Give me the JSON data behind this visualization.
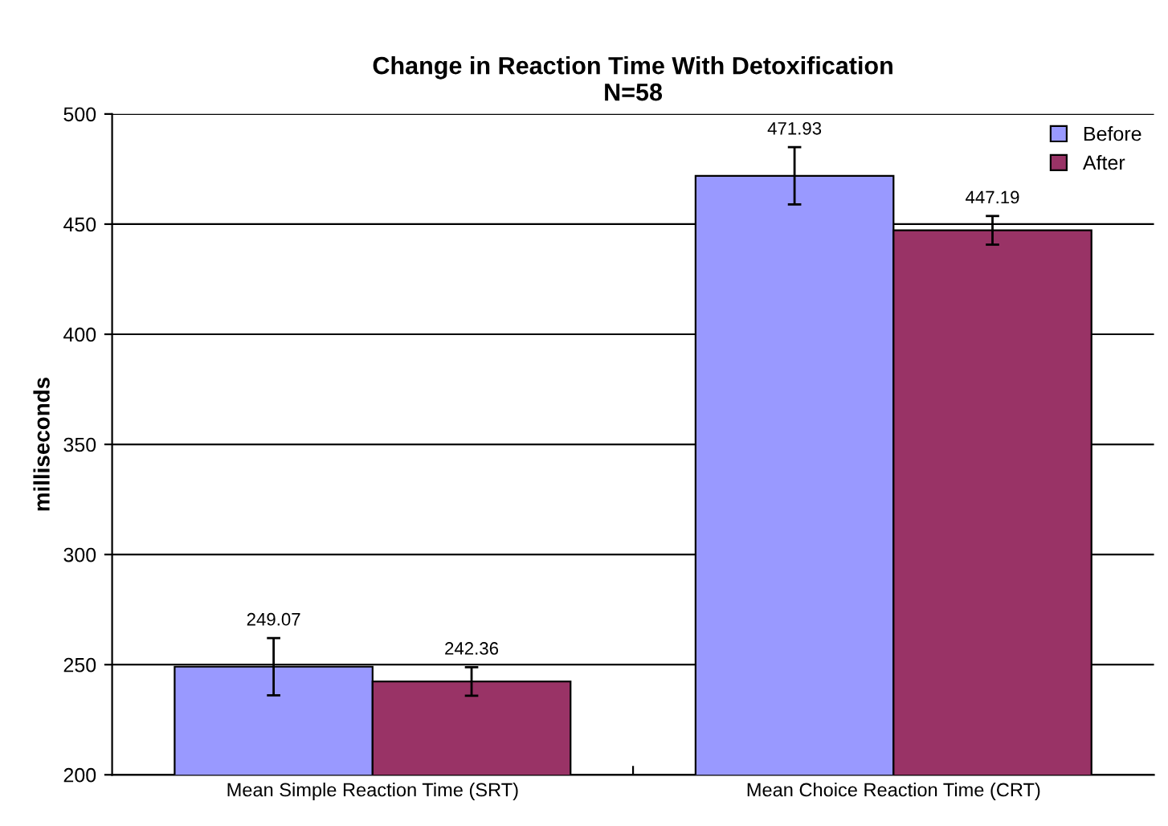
{
  "chart_data": {
    "type": "bar",
    "title": "Change in Reaction Time With Detoxification\nN=58",
    "ylabel": "milliseconds",
    "categories": [
      "Mean Simple Reaction Time (SRT)",
      "Mean Choice Reaction Time (CRT)"
    ],
    "series": [
      {
        "name": "Before",
        "color": "#9999ff",
        "values": [
          249.07,
          471.93
        ],
        "errors": [
          13,
          13
        ]
      },
      {
        "name": "After",
        "color": "#993366",
        "values": [
          242.36,
          447.19
        ],
        "errors": [
          6.5,
          6.5
        ]
      }
    ],
    "ylim": [
      200,
      500
    ],
    "yticks": [
      200,
      250,
      300,
      350,
      400,
      450,
      500
    ],
    "grid": "y",
    "legend": "top right",
    "data_labels": true
  }
}
